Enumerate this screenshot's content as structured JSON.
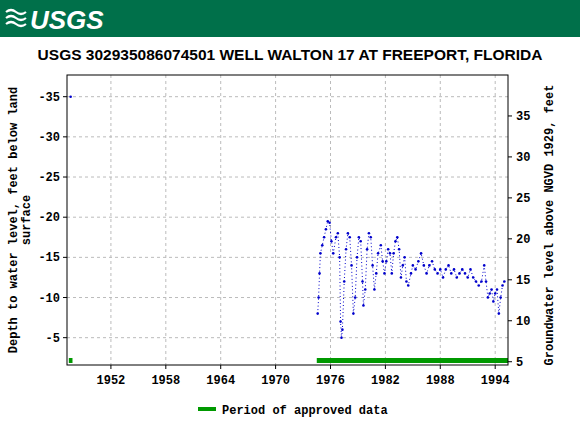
{
  "chart_data": {
    "type": "line",
    "logo_text": "USGS",
    "title": "USGS 302935086074501 WELL WALTON 17 AT FREEPORT, FLORIDA",
    "y_label": [
      "Depth to water level, feet below land",
      "surface"
    ],
    "y2_label": "Groundwater level above NGVD 1929, feet",
    "xlim": [
      1947.2,
      1995.4
    ],
    "xticks": [
      1952,
      1958,
      1964,
      1970,
      1976,
      1982,
      1988,
      1994
    ],
    "ylim": [
      -1.6,
      -37.7
    ],
    "yticks": [
      -35,
      -30,
      -25,
      -20,
      -15,
      -10,
      -5
    ],
    "y2lim": [
      4.6,
      40
    ],
    "y2ticks": [
      5,
      10,
      15,
      20,
      25,
      30,
      35
    ],
    "grid": true,
    "series": [
      {
        "name": "Depth to water level",
        "color": "#0000cc",
        "marker": "dot",
        "line_style": "dotted",
        "x": [
          1947.6,
          null,
          1974.6,
          1974.7,
          1974.8,
          1974.9,
          1975.1,
          1975.3,
          1975.5,
          1975.7,
          1975.9,
          1976.1,
          1976.3,
          1976.6,
          1976.8,
          1977.0,
          1977.1,
          1977.2,
          1977.3,
          1977.5,
          1977.7,
          1977.9,
          1978.1,
          1978.3,
          1978.5,
          1978.7,
          1978.9,
          1979.1,
          1979.3,
          1979.5,
          1979.6,
          1979.8,
          1980.0,
          1980.2,
          1980.4,
          1980.6,
          1980.8,
          1981.0,
          1981.2,
          1981.5,
          1981.7,
          1981.9,
          1982.1,
          1982.3,
          1982.5,
          1982.7,
          1982.9,
          1983.1,
          1983.3,
          1983.5,
          1983.7,
          1983.9,
          1984.1,
          1984.3,
          1984.5,
          1984.8,
          1985.0,
          1985.3,
          1985.6,
          1985.9,
          1986.2,
          1986.5,
          1986.8,
          1987.1,
          1987.4,
          1987.7,
          1988.0,
          1988.3,
          1988.6,
          1988.9,
          1989.2,
          1989.5,
          1989.8,
          1990.1,
          1990.4,
          1990.7,
          1991.0,
          1991.3,
          1991.6,
          1991.9,
          1992.2,
          1992.5,
          1992.8,
          1993.0,
          1993.2,
          1993.4,
          1993.6,
          1993.8,
          1994.0,
          1994.2,
          1994.4,
          1994.6,
          1994.8,
          1995.0
        ],
        "values": [
          -35,
          null,
          -8,
          -10,
          -13,
          -15.5,
          -16.5,
          -17.5,
          -18.5,
          -19.5,
          -19.3,
          -17,
          -15.5,
          -17.5,
          -18,
          -15,
          -7,
          -5,
          -6,
          -12,
          -16,
          -18,
          -17.5,
          -14,
          -8,
          -10,
          -15,
          -17.5,
          -17,
          -12,
          -9,
          -11,
          -16,
          -18,
          -17.5,
          -14,
          -11,
          -13,
          -15.5,
          -16.5,
          -14.5,
          -13,
          -14.5,
          -16,
          -15.5,
          -13,
          -15.5,
          -17,
          -17.5,
          -16,
          -12.5,
          -14,
          -15,
          -12,
          -11.5,
          -13,
          -14,
          -13.5,
          -14.5,
          -15.5,
          -14,
          -13,
          -14,
          -14.5,
          -13.5,
          -13,
          -13.5,
          -12.5,
          -13.5,
          -14,
          -13,
          -13.5,
          -12.5,
          -13,
          -13.5,
          -13,
          -12.5,
          -13.5,
          -12.5,
          -12,
          -11.5,
          -12,
          -14,
          -12,
          -10,
          -10.5,
          -11,
          -9.5,
          -10.5,
          -11,
          -8,
          -10,
          -11.5,
          -12
        ]
      }
    ],
    "approved_data": {
      "name": "Period of approved data",
      "color": "#009900",
      "periods": [
        [
          1947.4,
          1947.8
        ],
        [
          1974.5,
          1995.4
        ]
      ]
    }
  }
}
